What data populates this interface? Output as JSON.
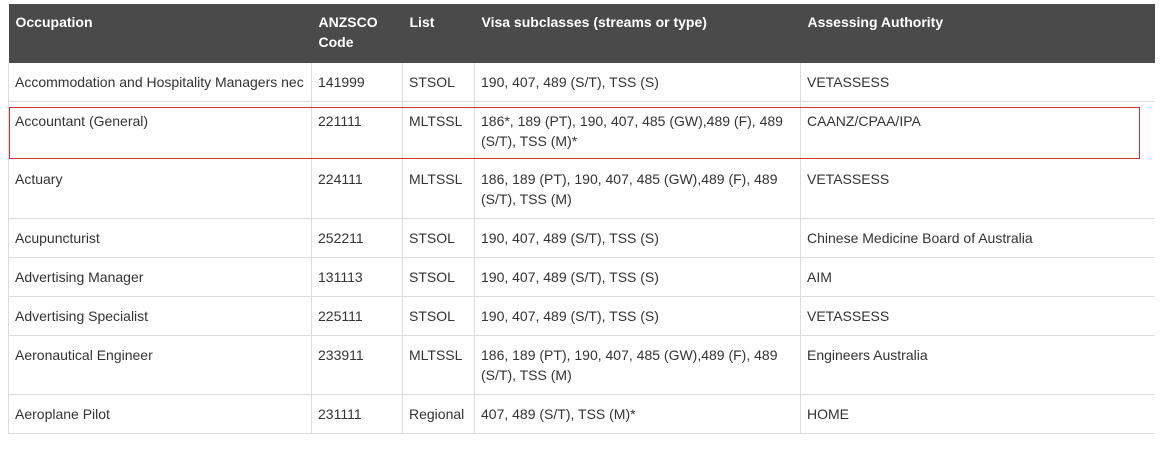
{
  "table": {
    "headers": {
      "occupation": "Occupation",
      "anzsco": "ANZSCO Code",
      "list": "List",
      "visa": "Visa subclasses (streams or type)",
      "authority": "Assessing Authority"
    },
    "rows": [
      {
        "occupation": "Accommodation and Hospitality Managers nec",
        "code": "141999",
        "list": "STSOL",
        "visa": "190, 407, 489 (S/T), TSS (S)",
        "authority": "VETASSESS"
      },
      {
        "occupation": "Accountant (General)",
        "code": "221111",
        "list": "MLTSSL",
        "visa": "186*, 189 (PT), 190, 407, 485 (GW),489 (F), 489 (S/T), TSS (M)*",
        "authority": "CAANZ/CPAA/IPA"
      },
      {
        "occupation": "Actuary",
        "code": "224111",
        "list": "MLTSSL",
        "visa": "186, 189 (PT), 190, 407, 485 (GW),489 (F), 489 (S/T), TSS (M)",
        "authority": "VETASSESS"
      },
      {
        "occupation": "Acupuncturist",
        "code": "252211",
        "list": "STSOL",
        "visa": "190, 407, 489 (S/T), TSS (S)",
        "authority": "Chinese Medicine Board of Australia"
      },
      {
        "occupation": "Advertising Manager",
        "code": "131113",
        "list": "STSOL",
        "visa": "190, 407, 489 (S/T), TSS (S)",
        "authority": "AIM"
      },
      {
        "occupation": "Advertising Specialist",
        "code": "225111",
        "list": "STSOL",
        "visa": "190, 407, 489 (S/T), TSS (S)",
        "authority": "VETASSESS"
      },
      {
        "occupation": "Aeronautical Engineer",
        "code": "233911",
        "list": "MLTSSL",
        "visa": "186, 189 (PT), 190, 407, 485 (GW),489 (F), 489 (S/T), TSS (M)",
        "authority": "Engineers Australia"
      },
      {
        "occupation": "Aeroplane Pilot",
        "code": "231111",
        "list": "Regional",
        "visa": "407, 489 (S/T), TSS (M)*",
        "authority": "HOME"
      }
    ]
  },
  "colors": {
    "header_bg": "#4a4a4a",
    "header_text": "#ffffff",
    "body_text": "#333333",
    "grid": "#dddddd",
    "highlight_outline": "#d03030"
  }
}
